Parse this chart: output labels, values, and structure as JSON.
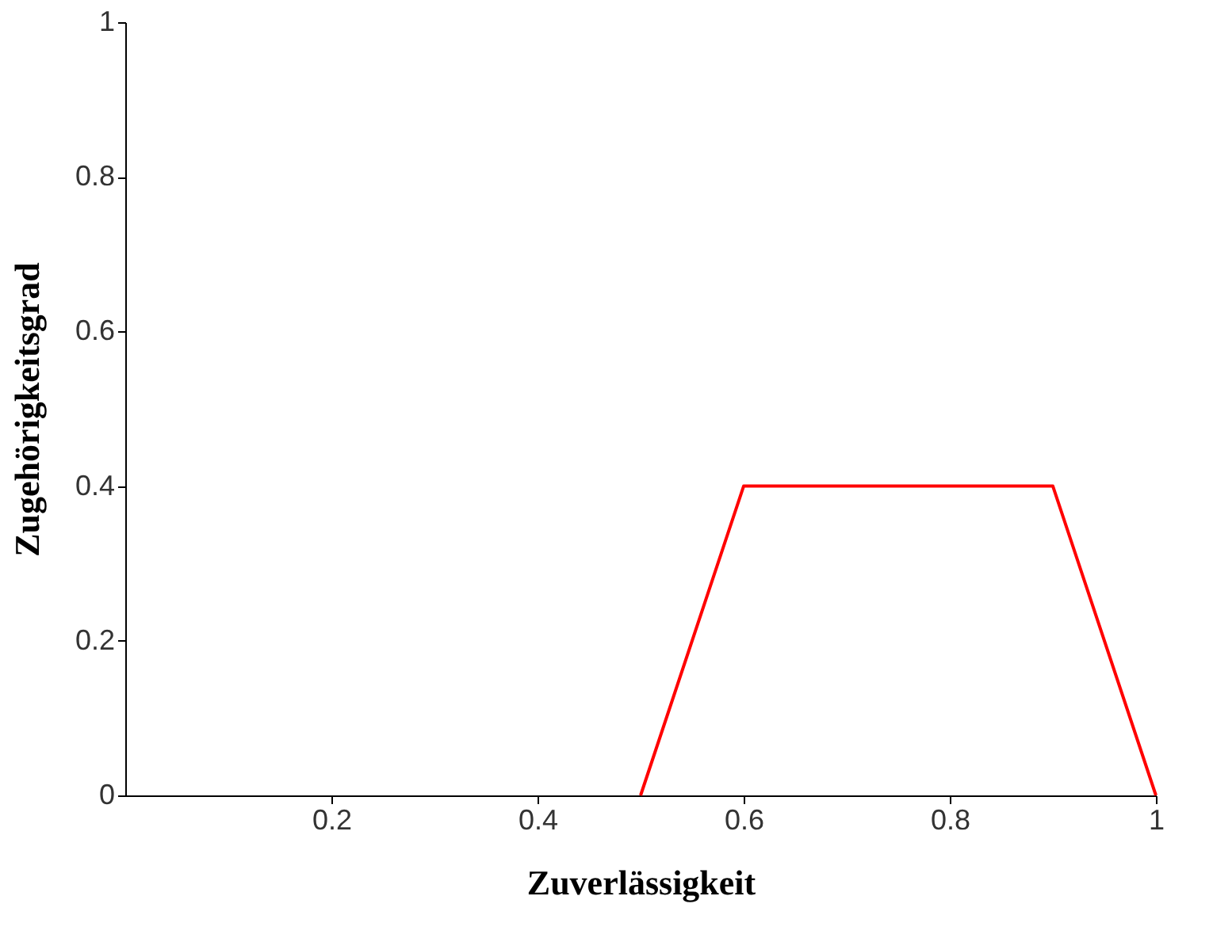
{
  "chart_data": {
    "type": "line",
    "xlabel": "Zuverlässigkeit",
    "ylabel": "Zugehörigkeitsgrad",
    "x": [
      0.5,
      0.6,
      0.9,
      1
    ],
    "series": [
      {
        "color": "#ff0000",
        "values": [
          0,
          0.4,
          0.4,
          0
        ]
      }
    ],
    "xlim": [
      0,
      1
    ],
    "ylim": [
      0,
      1
    ],
    "xticks": [
      0.2,
      0.4,
      0.6,
      0.8,
      1
    ],
    "yticks": [
      0,
      0.2,
      0.4,
      0.6,
      0.8,
      1
    ],
    "grid": false,
    "legend": false,
    "marker": "none",
    "line_style": "solid"
  }
}
